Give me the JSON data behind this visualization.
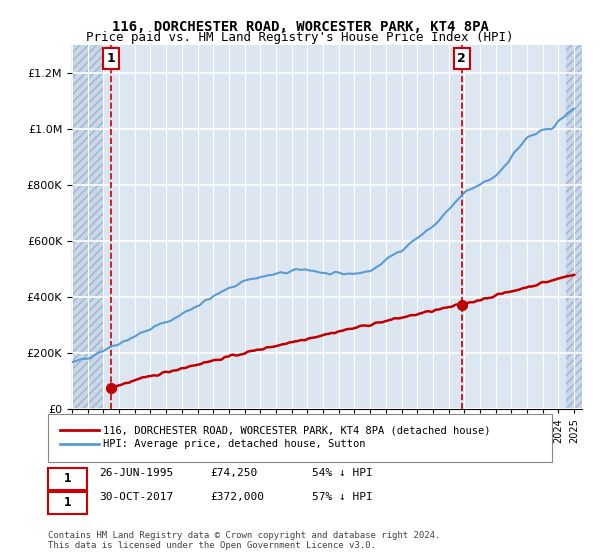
{
  "title": "116, DORCHESTER ROAD, WORCESTER PARK, KT4 8PA",
  "subtitle": "Price paid vs. HM Land Registry's House Price Index (HPI)",
  "hpi_label": "HPI: Average price, detached house, Sutton",
  "property_label": "116, DORCHESTER ROAD, WORCESTER PARK, KT4 8PA (detached house)",
  "sale1_date": "26-JUN-1995",
  "sale1_price": 74250,
  "sale1_note": "54% ↓ HPI",
  "sale2_date": "30-OCT-2017",
  "sale2_price": 372000,
  "sale2_note": "57% ↓ HPI",
  "sale1_x": 1995.48,
  "sale2_x": 2017.83,
  "copyright": "Contains HM Land Registry data © Crown copyright and database right 2024.\nThis data is licensed under the Open Government Licence v3.0.",
  "ylim": [
    0,
    1300000
  ],
  "xlim_start": 1993,
  "xlim_end": 2025.5,
  "hpi_color": "#5b9bd5",
  "property_color": "#c00000",
  "background_color": "#dce6f1",
  "hatch_color": "#b8c9e0",
  "grid_color": "#ffffff",
  "sale_marker_color": "#c00000"
}
